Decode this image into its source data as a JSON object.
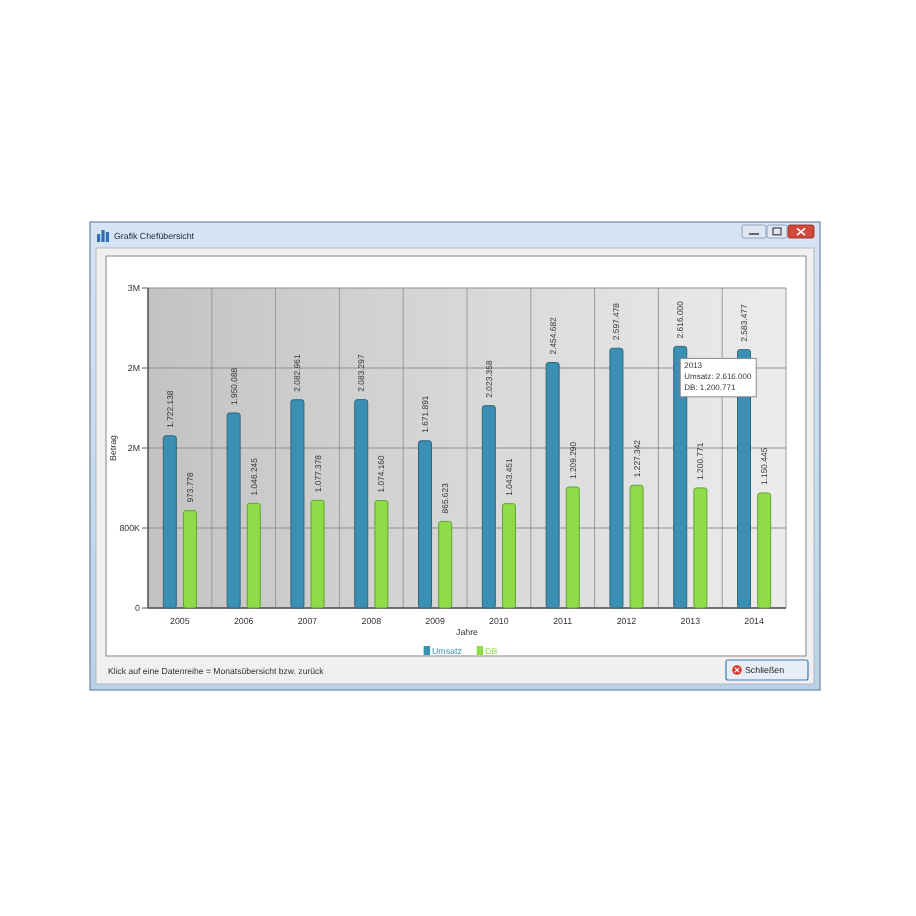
{
  "chart_data": {
    "type": "bar",
    "title": "Grafik Chefübersicht",
    "xlabel": "Jahre",
    "ylabel": "Betrag",
    "categories": [
      "2005",
      "2006",
      "2007",
      "2008",
      "2009",
      "2010",
      "2011",
      "2012",
      "2013",
      "2014"
    ],
    "series": [
      {
        "name": "Umsatz",
        "color": "#3b8fb2",
        "values": [
          1722138,
          1950088,
          2082961,
          2083297,
          1671891,
          2023358,
          2454682,
          2597478,
          2616000,
          2583477
        ],
        "value_labels": [
          "1.722.138",
          "1.950.088",
          "2.082.961",
          "2.083.297",
          "1.671.891",
          "2.023.358",
          "2.454.682",
          "2.597.478",
          "2.616.000",
          "2.583.477"
        ]
      },
      {
        "name": "DB",
        "color": "#8ddc48",
        "values": [
          973778,
          1046245,
          1077378,
          1074160,
          865623,
          1043451,
          1209290,
          1227342,
          1200771,
          1150445
        ],
        "value_labels": [
          "973.778",
          "1.046.245",
          "1.077.378",
          "1.074.160",
          "865.623",
          "1.043.451",
          "1.209.290",
          "1.227.342",
          "1.200.771",
          "1.150.445"
        ]
      }
    ],
    "ylim": [
      0,
      3200000
    ],
    "yticks": [
      0,
      {
        "value": 800000,
        "label": "800K"
      },
      {
        "value": 1600000,
        "label": "2M"
      },
      {
        "value": 2400000,
        "label": "2M"
      },
      {
        "value": 3200000,
        "label": "3M"
      }
    ],
    "grid": true,
    "legend": "bottom",
    "annotations": [
      {
        "text": "2013\nUmsatz: 2.616.000\nDB: 1.200.771",
        "x": "2013",
        "y": 2616000
      },
      "Klick auf eine Datenreihe = Monatsübersicht bzw. zurück",
      "Schließen"
    ]
  }
}
